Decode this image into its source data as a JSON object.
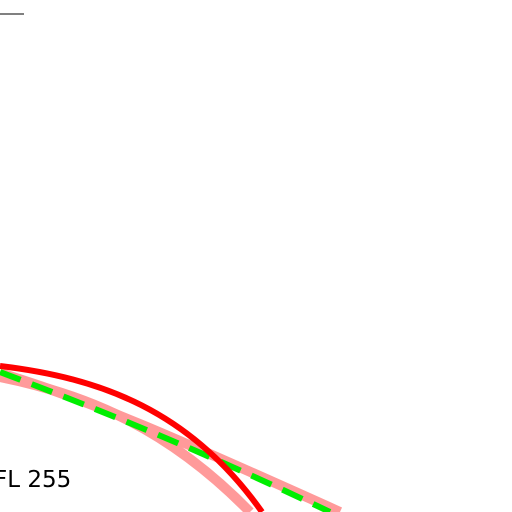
{
  "label": "FL 255"
}
